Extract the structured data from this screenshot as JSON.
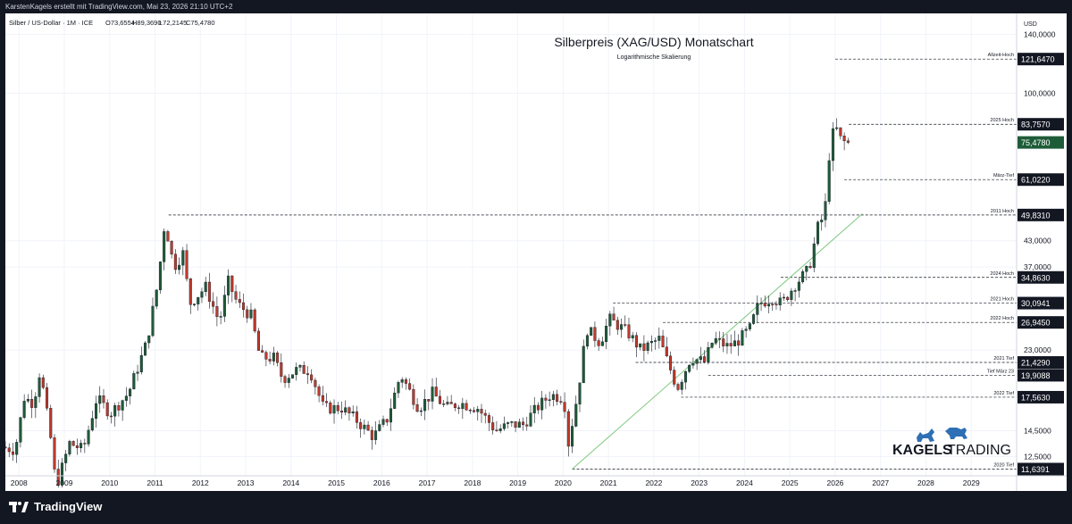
{
  "header": {
    "credit": "KarstenKagels erstellt mit TradingView.com, Mai 23, 2026 21:10 UTC+2"
  },
  "legend": {
    "symbol": "Silber / US-Dollar · 1M · ICE",
    "open": "O73,6554",
    "high": "H89,3690",
    "low": "L72,2145",
    "close": "C75,4780"
  },
  "footer": {
    "brand": "TradingView"
  },
  "logo": {
    "word1": "KAGELS",
    "word2": "TRADING"
  },
  "colors": {
    "up": "#1e5c38",
    "down": "#c0392b",
    "trend": "#7ec87e",
    "price_tag": "#1e5c38",
    "level_tag": "#131722"
  },
  "chart_data": {
    "type": "candlestick",
    "title": "Silberpreis (XAG/USD) Monatschart",
    "subtitle": "Logarithmische Skalierung",
    "currency": "USD",
    "y_scale": "log",
    "ylim": [
      11.2,
      158
    ],
    "x_range": [
      2007.7,
      2030.0
    ],
    "x_ticks": [
      "2008",
      "2009",
      "2010",
      "2011",
      "2012",
      "2013",
      "2014",
      "2015",
      "2016",
      "2017",
      "2018",
      "2019",
      "2020",
      "2021",
      "2022",
      "2023",
      "2024",
      "2025",
      "2026",
      "2027",
      "2028",
      "2029"
    ],
    "y_ticks": [
      "140,0000",
      "100,0000",
      "43,0000",
      "37,0000",
      "23,0000",
      "14,5000",
      "12,5000"
    ],
    "current_price": {
      "value": 75.478,
      "label": "75,4780"
    },
    "levels": [
      {
        "value": 121.647,
        "label": "121,6470",
        "name": "Allzeit-Hoch",
        "start": 2026.0
      },
      {
        "value": 83.757,
        "label": "83,7570",
        "name": "2025 Hoch",
        "start": 2026.3
      },
      {
        "value": 61.022,
        "label": "61,0220",
        "name": "März-Tief",
        "start": 2026.2
      },
      {
        "value": 49.831,
        "label": "49,8310",
        "name": "2011 Hoch",
        "start": 2011.3
      },
      {
        "value": 34.863,
        "label": "34,8630",
        "name": "2024 Hoch",
        "start": 2024.8
      },
      {
        "value": 30.0941,
        "label": "30,0941",
        "name": "2021 Hoch",
        "start": 2021.1
      },
      {
        "value": 26.945,
        "label": "26,9450",
        "name": "2022 Hoch",
        "start": 2022.2
      },
      {
        "value": 21.429,
        "label": "21,4290",
        "name": "2021 Tief",
        "start": 2021.6
      },
      {
        "value": 19.9088,
        "label": "19,9088",
        "name": "Tief März 23",
        "start": 2023.2
      },
      {
        "value": 17.563,
        "label": "17,5630",
        "name": "2022 Tief",
        "start": 2022.6
      },
      {
        "value": 11.6391,
        "label": "11,6391",
        "name": "2020 Tief",
        "start": 2020.2
      }
    ],
    "trendline": {
      "x": [
        2020.2,
        2026.6
      ],
      "y": [
        11.64,
        50.2
      ]
    },
    "anchors": [
      [
        2007.7,
        13.2
      ],
      [
        2008.0,
        13.0
      ],
      [
        2008.2,
        17.5
      ],
      [
        2008.4,
        17.0
      ],
      [
        2008.55,
        20.5
      ],
      [
        2008.8,
        13.5
      ],
      [
        2008.9,
        10.5
      ],
      [
        2009.2,
        13.5
      ],
      [
        2009.5,
        13.0
      ],
      [
        2009.8,
        17.5
      ],
      [
        2010.1,
        16.0
      ],
      [
        2010.5,
        18.0
      ],
      [
        2010.9,
        24.0
      ],
      [
        2011.15,
        34.0
      ],
      [
        2011.3,
        48.0
      ],
      [
        2011.5,
        37.0
      ],
      [
        2011.7,
        40.0
      ],
      [
        2011.85,
        30.0
      ],
      [
        2012.2,
        33.0
      ],
      [
        2012.5,
        27.0
      ],
      [
        2012.7,
        34.0
      ],
      [
        2012.9,
        30.0
      ],
      [
        2013.2,
        28.0
      ],
      [
        2013.4,
        22.0
      ],
      [
        2013.7,
        22.0
      ],
      [
        2013.9,
        19.5
      ],
      [
        2014.2,
        20.5
      ],
      [
        2014.5,
        20.5
      ],
      [
        2014.8,
        16.5
      ],
      [
        2015.2,
        16.5
      ],
      [
        2015.5,
        15.5
      ],
      [
        2015.9,
        14.0
      ],
      [
        2016.2,
        15.5
      ],
      [
        2016.5,
        20.0
      ],
      [
        2016.9,
        16.5
      ],
      [
        2017.2,
        18.0
      ],
      [
        2017.5,
        16.5
      ],
      [
        2017.8,
        17.0
      ],
      [
        2018.2,
        16.5
      ],
      [
        2018.6,
        14.5
      ],
      [
        2018.9,
        15.0
      ],
      [
        2019.2,
        15.0
      ],
      [
        2019.5,
        16.5
      ],
      [
        2019.8,
        17.8
      ],
      [
        2020.1,
        17.5
      ],
      [
        2020.2,
        13.5
      ],
      [
        2020.4,
        17.8
      ],
      [
        2020.6,
        26.0
      ],
      [
        2020.9,
        24.0
      ],
      [
        2021.1,
        27.5
      ],
      [
        2021.5,
        25.5
      ],
      [
        2021.8,
        23.0
      ],
      [
        2022.2,
        24.5
      ],
      [
        2022.6,
        18.5
      ],
      [
        2022.9,
        22.0
      ],
      [
        2023.2,
        21.5
      ],
      [
        2023.4,
        24.5
      ],
      [
        2023.7,
        23.5
      ],
      [
        2023.9,
        24.0
      ],
      [
        2024.2,
        26.0
      ],
      [
        2024.4,
        30.0
      ],
      [
        2024.7,
        31.0
      ],
      [
        2024.9,
        30.0
      ],
      [
        2025.2,
        33.5
      ],
      [
        2025.5,
        36.5
      ],
      [
        2025.7,
        46.5
      ],
      [
        2025.85,
        50.0
      ],
      [
        2025.95,
        70.0
      ],
      [
        2026.0,
        78.0
      ],
      [
        2026.1,
        82.0
      ],
      [
        2026.2,
        77.0
      ],
      [
        2026.3,
        75.5
      ]
    ]
  }
}
